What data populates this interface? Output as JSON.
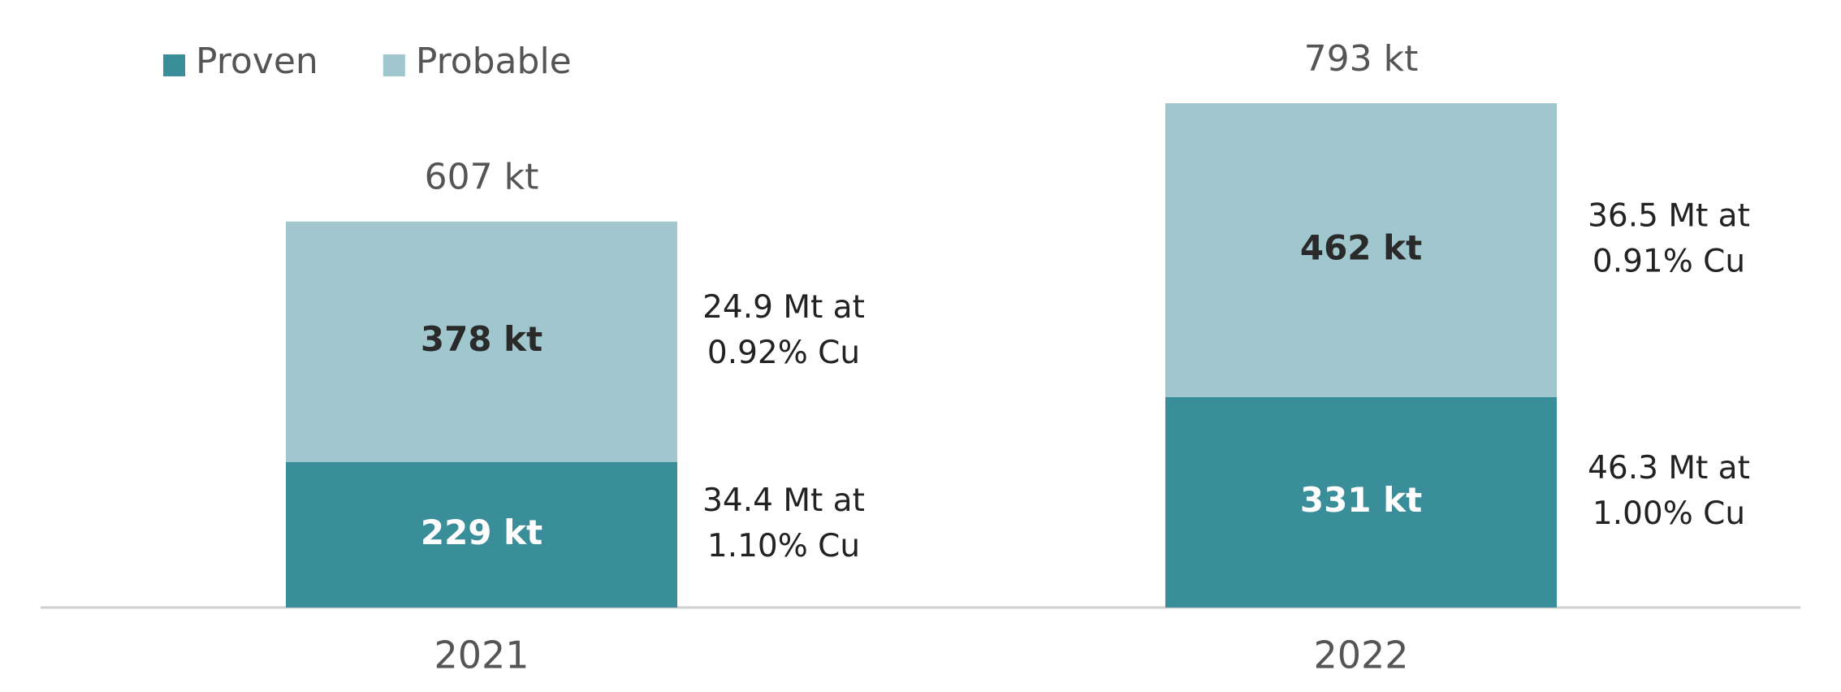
{
  "chart_data": {
    "type": "stacked-bar",
    "categories": [
      "2021",
      "2022"
    ],
    "series": [
      {
        "name": "Proven",
        "color": "#3a8e9a",
        "values": [
          229,
          331
        ],
        "value_labels": [
          "229 kt",
          "331 kt"
        ],
        "notes": [
          [
            "34.4 Mt at",
            "1.10% Cu"
          ],
          [
            "46.3 Mt at",
            "1.00% Cu"
          ]
        ]
      },
      {
        "name": "Probable",
        "color": "#9fc7cd",
        "values": [
          378,
          462
        ],
        "value_labels": [
          "378 kt",
          "462 kt"
        ],
        "notes": [
          [
            "24.9 Mt at",
            "0.92% Cu"
          ],
          [
            "36.5 Mt at",
            "0.91% Cu"
          ]
        ]
      }
    ],
    "totals": {
      "values": [
        607,
        793
      ],
      "value_labels": [
        "607 kt",
        "793 kt"
      ]
    }
  }
}
